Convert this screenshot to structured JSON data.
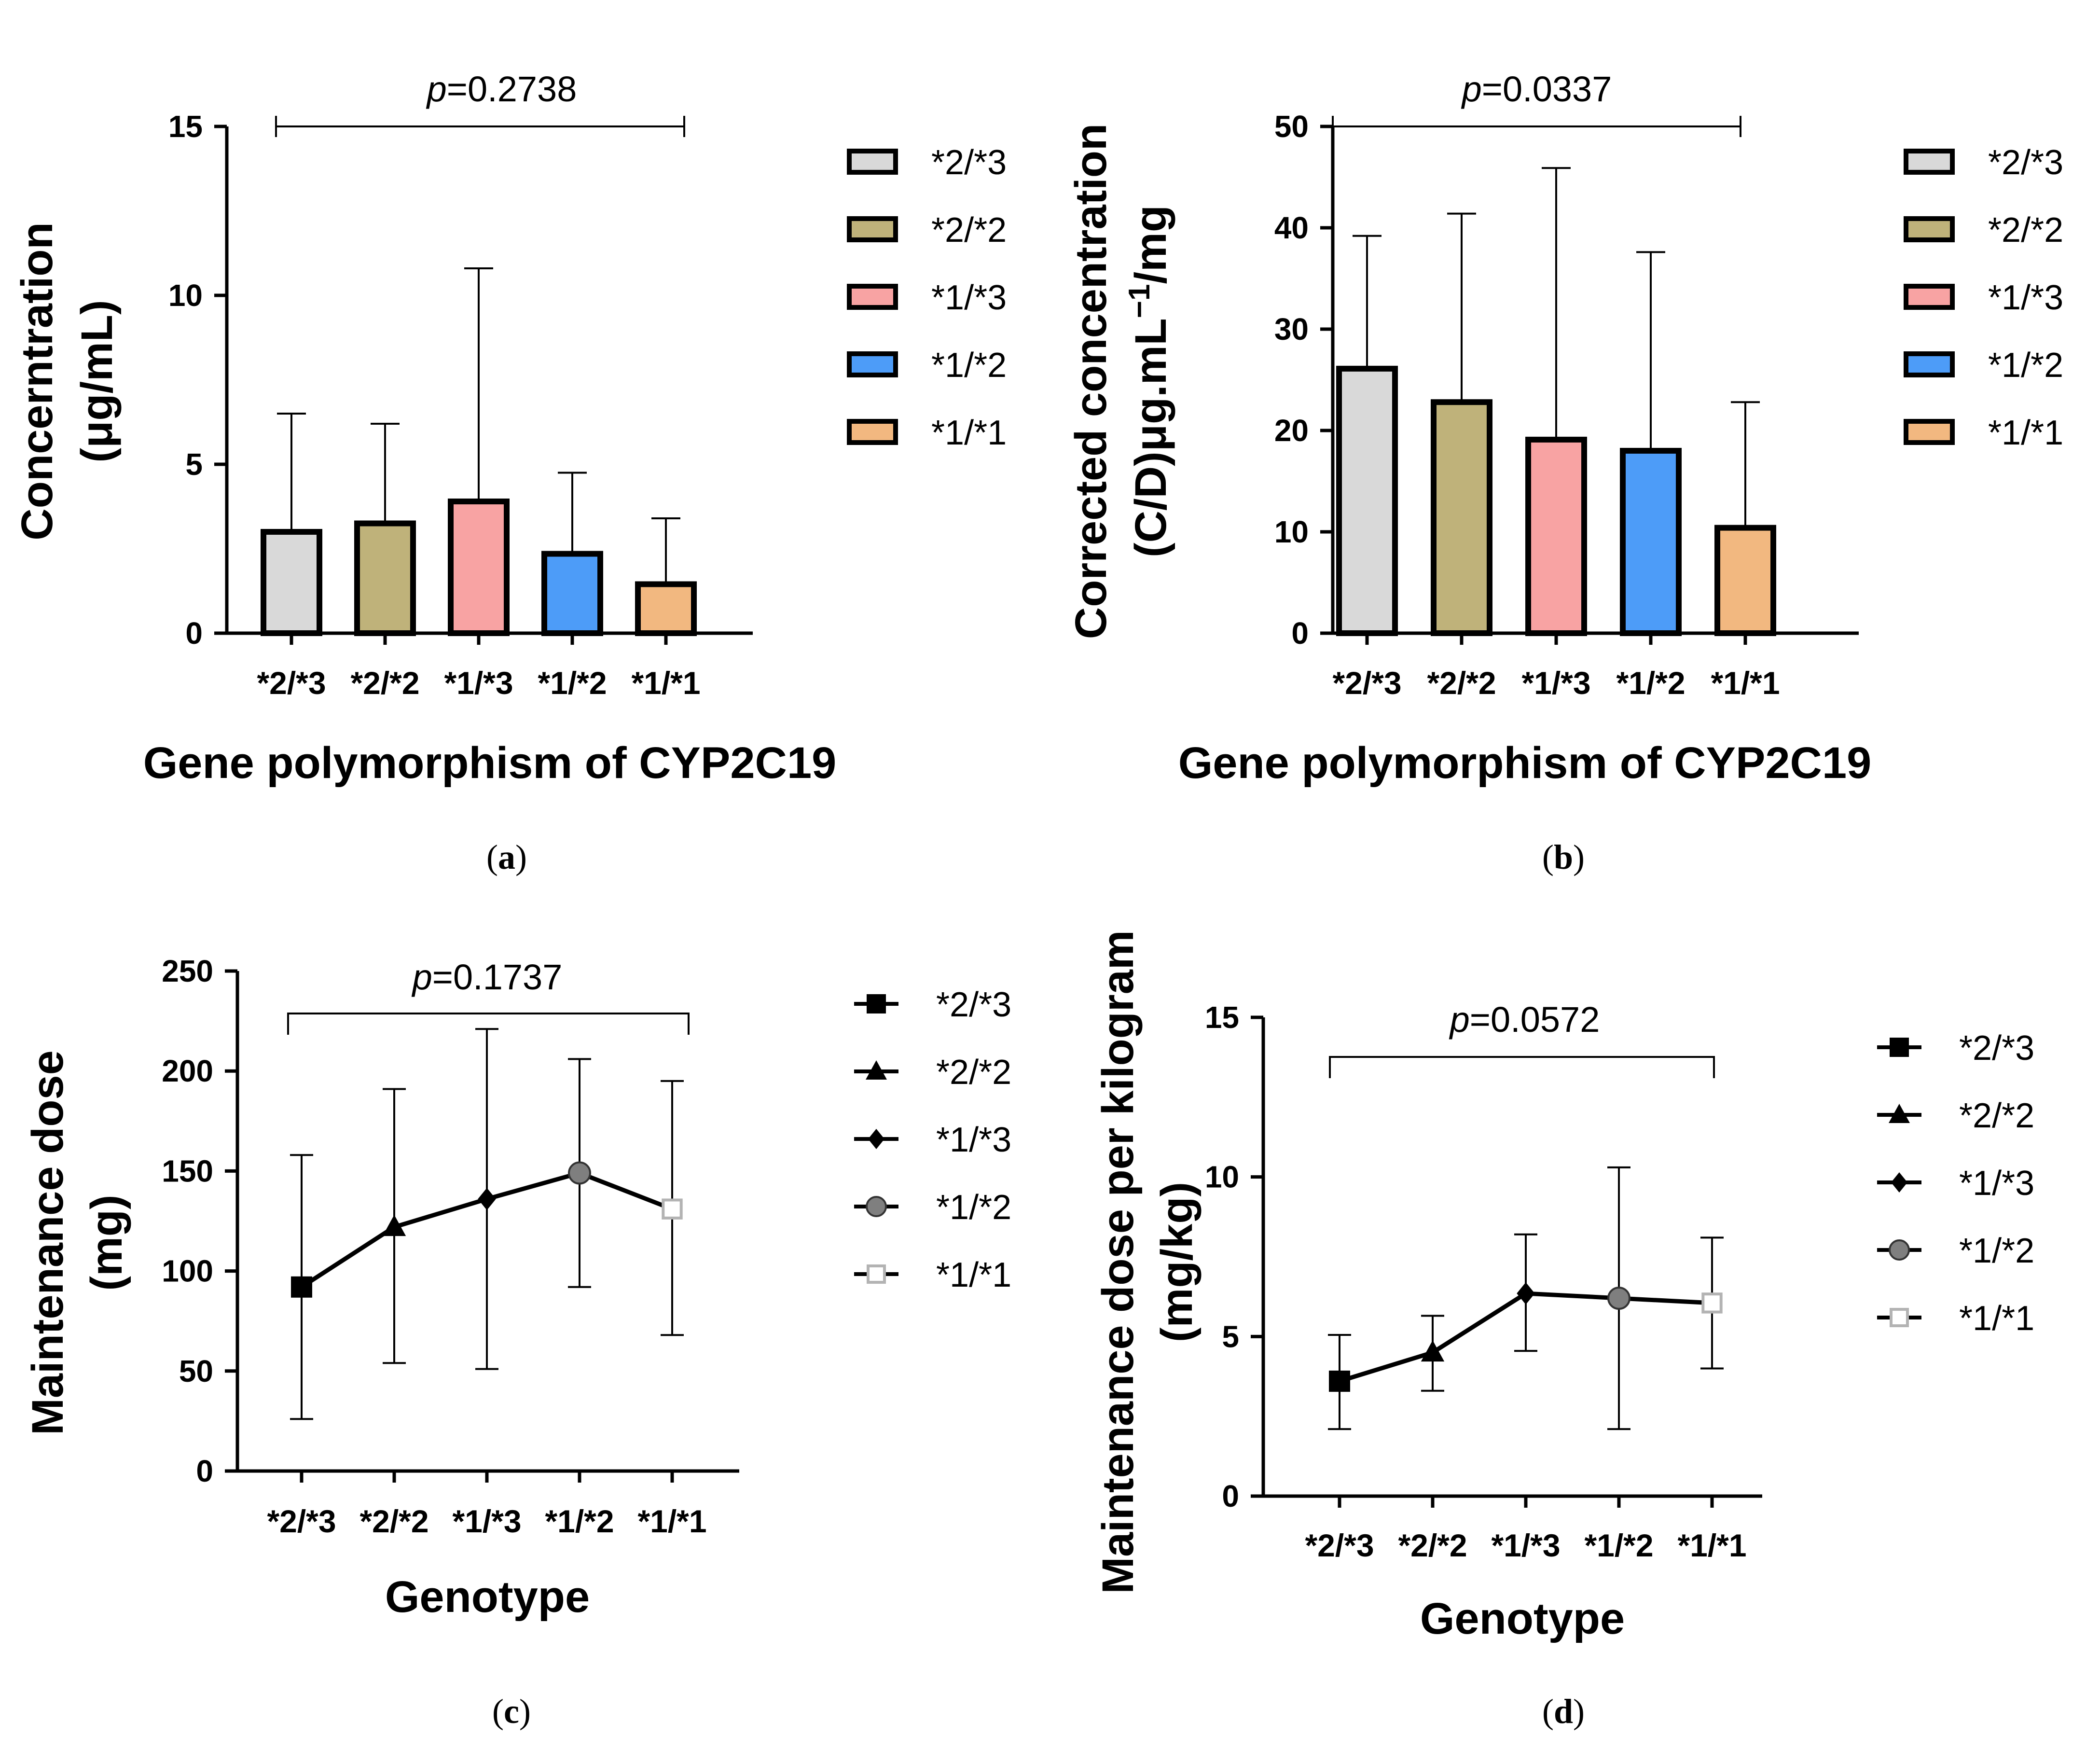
{
  "chart_data": [
    {
      "panel": "(a)",
      "type": "bar",
      "categories": [
        "*2/*3",
        "*2/*2",
        "*1/*3",
        "*1/*2",
        "*1/*1"
      ],
      "values": [
        3.0,
        3.25,
        3.9,
        2.35,
        1.45
      ],
      "error_upper": [
        6.5,
        6.2,
        10.8,
        4.75,
        3.4
      ],
      "ylim": [
        0,
        15
      ],
      "yticks": [
        "0",
        "5",
        "10",
        "15"
      ],
      "ytick_values": [
        0,
        5,
        10,
        15
      ],
      "ylabel_line1": "Concerntration",
      "ylabel_line2": "(μg/mL)",
      "xlabel": "Gene polymorphism of CYP2C19",
      "p_prefix": "p",
      "p_value": "=0.2738",
      "legend": [
        "*2/*3",
        "*2/*2",
        "*1/*3",
        "*1/*2",
        "*1/*1"
      ],
      "colors": [
        "#d9d9d9",
        "#bfb27a",
        "#f8a3a3",
        "#4d9cf8",
        "#f2b880"
      ]
    },
    {
      "panel": "(b)",
      "type": "bar",
      "categories": [
        "*2/*3",
        "*2/*2",
        "*1/*3",
        "*1/*2",
        "*1/*1"
      ],
      "values": [
        26.1,
        22.8,
        19.1,
        18.0,
        10.4
      ],
      "error_upper": [
        39.2,
        41.4,
        45.9,
        37.6,
        22.8
      ],
      "ylim": [
        0,
        50
      ],
      "yticks": [
        "0",
        "10",
        "20",
        "30",
        "40",
        "50"
      ],
      "ytick_values": [
        0,
        10,
        20,
        30,
        40,
        50
      ],
      "ylabel_line1": "Corrected concentration",
      "ylabel_line2_pre": "(C/D)μg.mL",
      "ylabel_line2_sup": "−1",
      "ylabel_line2_post": "/mg",
      "xlabel": "Gene polymorphism of CYP2C19",
      "p_prefix": "p",
      "p_value": "=0.0337",
      "legend": [
        "*2/*3",
        "*2/*2",
        "*1/*3",
        "*1/*2",
        "*1/*1"
      ],
      "colors": [
        "#d9d9d9",
        "#bfb27a",
        "#f8a3a3",
        "#4d9cf8",
        "#f2b880"
      ]
    },
    {
      "panel": "(c)",
      "type": "line",
      "categories": [
        "*2/*3",
        "*2/*2",
        "*1/*3",
        "*1/*2",
        "*1/*1"
      ],
      "values": [
        92,
        122,
        136,
        149,
        131
      ],
      "error_low": [
        26,
        54,
        51,
        92,
        68
      ],
      "error_high": [
        158,
        191,
        221,
        206,
        195
      ],
      "ylim": [
        0,
        250
      ],
      "yticks": [
        "0",
        "50",
        "100",
        "150",
        "200",
        "250"
      ],
      "ytick_values": [
        0,
        50,
        100,
        150,
        200,
        250
      ],
      "ylabel_line1": "Maintenance dose",
      "ylabel_line2": "(mg)",
      "xlabel": "Genotype",
      "p_prefix": "p",
      "p_value": "=0.1737",
      "legend": [
        "*2/*3",
        "*2/*2",
        "*1/*3",
        "*1/*2",
        "*1/*1"
      ],
      "markers": [
        "square",
        "triangle",
        "diamond",
        "circle-gray",
        "square-open"
      ]
    },
    {
      "panel": "(d)",
      "type": "line",
      "categories": [
        "*2/*3",
        "*2/*2",
        "*1/*3",
        "*1/*2",
        "*1/*1"
      ],
      "values": [
        3.6,
        4.5,
        6.35,
        6.2,
        6.05
      ],
      "error_low": [
        2.1,
        3.3,
        4.55,
        2.1,
        4.0
      ],
      "error_high": [
        5.05,
        5.65,
        8.2,
        10.3,
        8.1
      ],
      "ylim": [
        0,
        15
      ],
      "yticks": [
        "0",
        "5",
        "10",
        "15"
      ],
      "ytick_values": [
        0,
        5,
        10,
        15
      ],
      "ylabel_line1": "Maintenance dose per kilogram",
      "ylabel_line2": "(mg/kg)",
      "xlabel": "Genotype",
      "p_prefix": "p",
      "p_value": "=0.0572",
      "legend": [
        "*2/*3",
        "*2/*2",
        "*1/*3",
        "*1/*2",
        "*1/*1"
      ],
      "markers": [
        "square",
        "triangle",
        "diamond",
        "circle-gray",
        "square-open"
      ]
    }
  ],
  "colors": {
    "axis": "#000000",
    "bar_edge": "#000000",
    "marker_gray": "#7f7f7f",
    "marker_light": "#b3b3b3"
  }
}
